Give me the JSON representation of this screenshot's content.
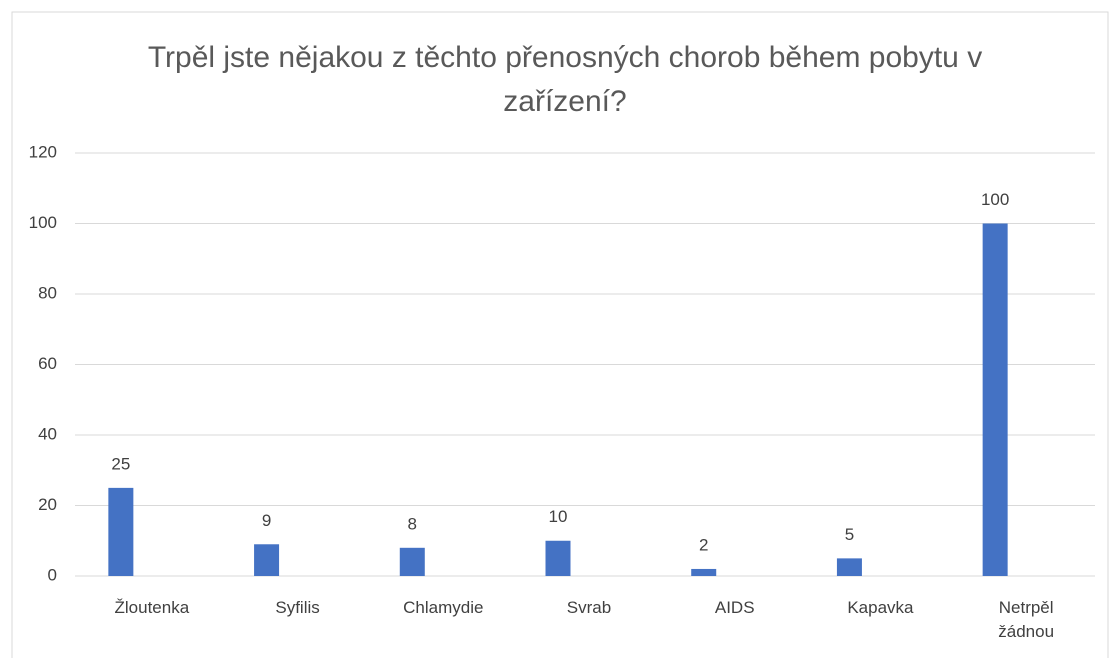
{
  "chart_data": {
    "type": "bar",
    "title": "Trpěl jste nějakou z těchto přenosných chorob během pobytu v zařízení?",
    "categories": [
      "Žloutenka",
      "Syfilis",
      "Chlamydie",
      "Svrab",
      "AIDS",
      "Kapavka",
      "Netrpěl žádnou"
    ],
    "values": [
      25,
      9,
      8,
      10,
      2,
      5,
      100
    ],
    "color": "#4472c4",
    "ylim": [
      0,
      120
    ],
    "yticks": [
      0,
      20,
      40,
      60,
      80,
      100,
      120
    ],
    "grid": true
  }
}
